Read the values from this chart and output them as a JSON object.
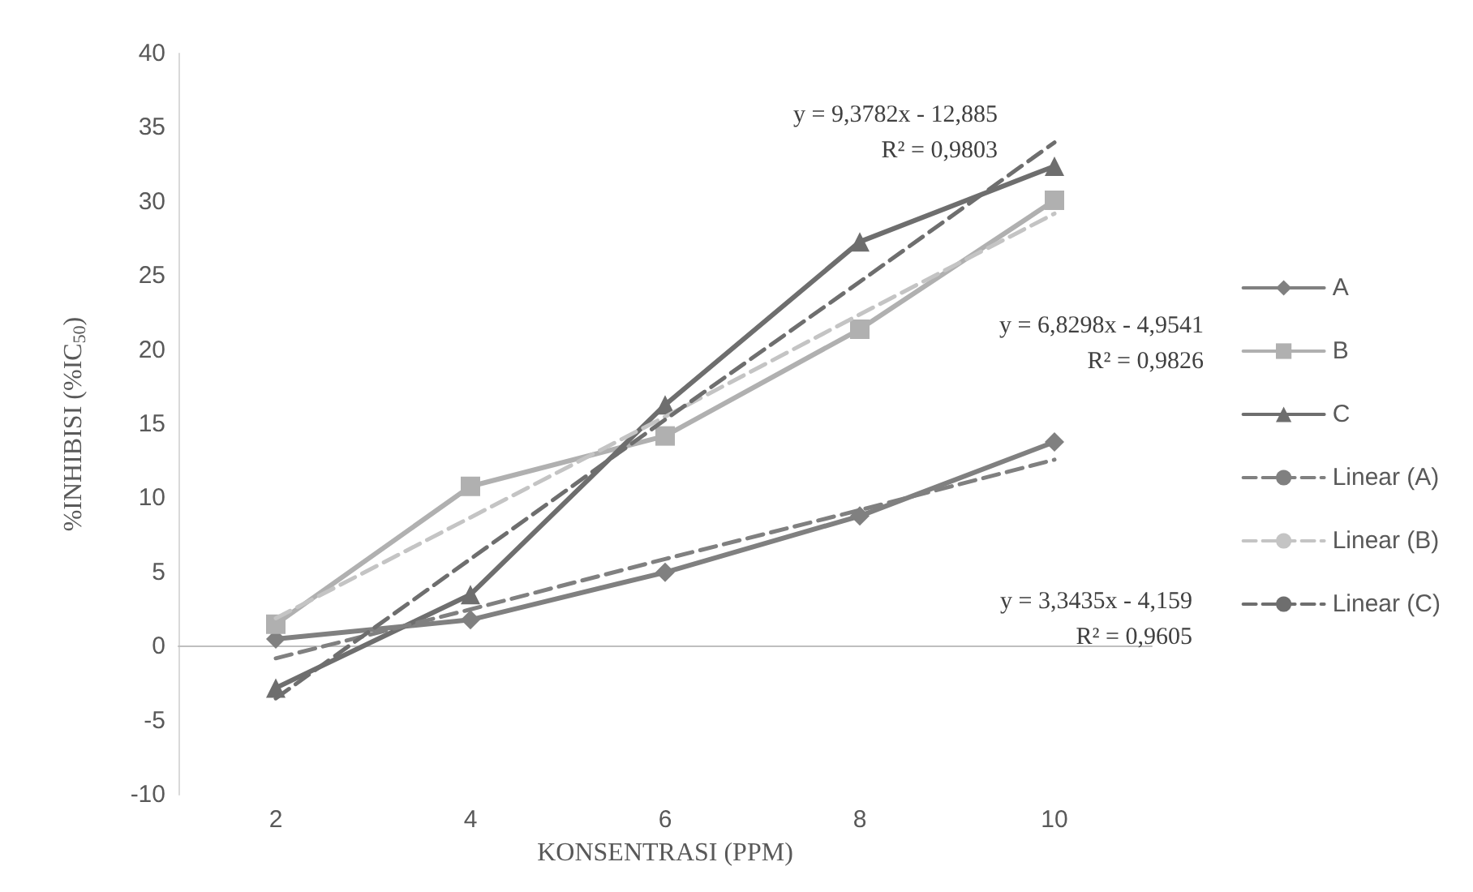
{
  "chart_data": {
    "type": "line",
    "xlabel": "KONSENTRASI (PPM)",
    "ylabel": "%INHIBISI (%IC$_{50}$)",
    "categories": [
      "2",
      "4",
      "6",
      "8",
      "10"
    ],
    "ylim": [
      -10,
      40
    ],
    "yticks": [
      -10,
      -5,
      0,
      5,
      10,
      15,
      20,
      25,
      30,
      35,
      40
    ],
    "legend": "right",
    "series": [
      {
        "name": "A",
        "color": "#808080",
        "marker": "diamond",
        "line_style": "solid",
        "values": [
          0.5,
          1.8,
          5.0,
          8.8,
          13.8
        ]
      },
      {
        "name": "B",
        "color": "#b0b0b0",
        "marker": "square",
        "line_style": "solid",
        "values": [
          1.5,
          10.8,
          14.2,
          21.4,
          30.1
        ]
      },
      {
        "name": "C",
        "color": "#6e6e6e",
        "marker": "triangle",
        "line_style": "solid",
        "values": [
          -2.8,
          3.5,
          16.3,
          27.3,
          32.4
        ]
      },
      {
        "name": "Linear (A)",
        "color": "#808080",
        "marker": "none",
        "line_style": "dashed",
        "values": [
          -0.8,
          2.5,
          5.9,
          9.2,
          12.6
        ]
      },
      {
        "name": "Linear (B)",
        "color": "#c4c4c4",
        "marker": "none",
        "line_style": "dashed",
        "values": [
          1.9,
          8.7,
          15.5,
          22.4,
          29.2
        ]
      },
      {
        "name": "Linear (C)",
        "color": "#6e6e6e",
        "marker": "none",
        "line_style": "dashed",
        "values": [
          -3.5,
          5.9,
          15.3,
          24.6,
          34.0
        ]
      }
    ],
    "annotations": [
      "y = 9,3782x - 12,885\nR² = 0,9803",
      "y = 6,8298x - 4,9541\nR² = 0,9826",
      "y = 3,3435x - 4,159\nR² = 0,9605"
    ]
  }
}
